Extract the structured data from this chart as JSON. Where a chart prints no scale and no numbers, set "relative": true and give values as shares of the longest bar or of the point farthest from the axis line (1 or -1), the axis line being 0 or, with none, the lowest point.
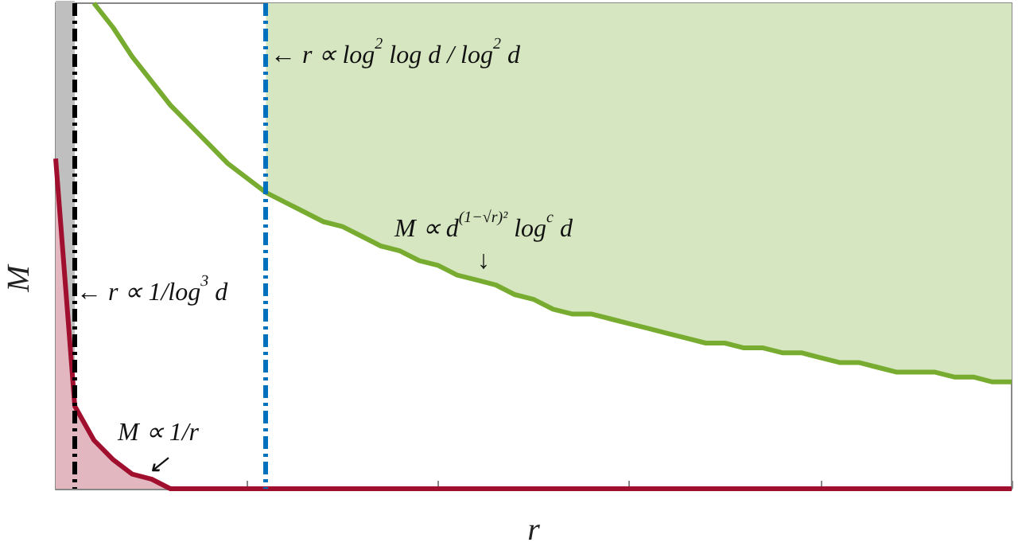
{
  "chart_data": {
    "type": "line",
    "relative": true,
    "xlabel": "r",
    "ylabel": "M",
    "marker": "none",
    "categories": [
      null,
      null,
      null,
      null,
      null,
      null,
      null,
      null,
      null,
      null,
      null,
      null,
      null,
      null,
      null,
      null,
      null,
      null,
      null,
      null,
      null,
      null,
      null,
      null,
      null,
      null,
      null,
      null,
      null,
      null,
      null,
      null,
      null,
      null,
      null,
      null,
      null,
      null,
      null,
      null,
      null,
      null,
      null,
      null,
      null,
      null,
      null,
      null,
      null,
      null,
      null
    ],
    "series": [
      {
        "type": "area",
        "color": "#bfbfbf",
        "values": [
          1,
          1,
          null,
          null,
          null,
          null,
          null,
          null,
          null,
          null,
          null,
          null,
          null,
          null,
          null,
          null,
          null,
          null,
          null,
          null,
          null,
          null,
          null,
          null,
          null,
          null,
          null,
          null,
          null,
          null,
          null,
          null,
          null,
          null,
          null,
          null,
          null,
          null,
          null,
          null,
          null,
          null,
          null,
          null,
          null,
          null,
          null,
          null,
          null,
          null,
          null
        ]
      },
      {
        "type": "area",
        "color": "#a0102e",
        "values": [
          0.68,
          0.17,
          0.1,
          0.06,
          0.03,
          0.02,
          0,
          0,
          0,
          0,
          0,
          0,
          0,
          0,
          0,
          0,
          0,
          0,
          0,
          0,
          0,
          0,
          0,
          0,
          0,
          0,
          0,
          0,
          0,
          0,
          0,
          0,
          0,
          0,
          0,
          0,
          0,
          0,
          0,
          0,
          0,
          0,
          0,
          0,
          0,
          0,
          0,
          0,
          0,
          0,
          0
        ]
      },
      {
        "color": "#77ac30",
        "values": [
          null,
          null,
          1,
          0.95,
          0.89,
          0.84,
          0.79,
          0.75,
          0.71,
          0.67,
          0.64,
          0.61,
          0.59,
          0.57,
          0.55,
          0.54,
          0.52,
          0.5,
          0.49,
          0.47,
          0.46,
          0.44,
          0.43,
          0.42,
          0.4,
          0.39,
          0.37,
          0.36,
          0.36,
          0.35,
          0.34,
          0.33,
          0.32,
          0.31,
          0.3,
          0.3,
          0.29,
          0.29,
          0.28,
          0.28,
          0.27,
          0.26,
          0.26,
          0.25,
          0.24,
          0.24,
          0.24,
          0.23,
          0.23,
          0.22,
          0.22
        ],
        "lower": [
          null,
          null,
          null,
          null,
          null,
          null,
          null,
          null,
          null,
          null,
          null,
          0.61,
          0.59,
          0.57,
          0.55,
          0.54,
          0.52,
          0.5,
          0.49,
          0.47,
          0.46,
          0.44,
          0.43,
          0.42,
          0.4,
          0.39,
          0.37,
          0.36,
          0.36,
          0.35,
          0.34,
          0.33,
          0.32,
          0.31,
          0.3,
          0.3,
          0.29,
          0.29,
          0.28,
          0.28,
          0.27,
          0.26,
          0.26,
          0.25,
          0.24,
          0.24,
          0.24,
          0.23,
          0.23,
          0.22,
          0.22
        ],
        "upper": [
          null,
          null,
          null,
          null,
          null,
          null,
          null,
          null,
          null,
          null,
          null,
          1,
          1,
          1,
          1,
          1,
          1,
          1,
          1,
          1,
          1,
          1,
          1,
          1,
          1,
          1,
          1,
          1,
          1,
          1,
          1,
          1,
          1,
          1,
          1,
          1,
          1,
          1,
          1,
          1,
          1,
          1,
          1,
          1,
          1,
          1,
          1,
          1,
          1,
          1,
          1
        ]
      }
    ],
    "annotations": [
      "← r ∝ 1/log$^{3}$ d",
      "← r ∝ log$^{2}$ log d / log$^{2}$ d",
      "M ∝ d$^{(1−√r)²}$ log$^{c}$ d\n↓",
      "M ∝ 1/r\n↙"
    ]
  }
}
